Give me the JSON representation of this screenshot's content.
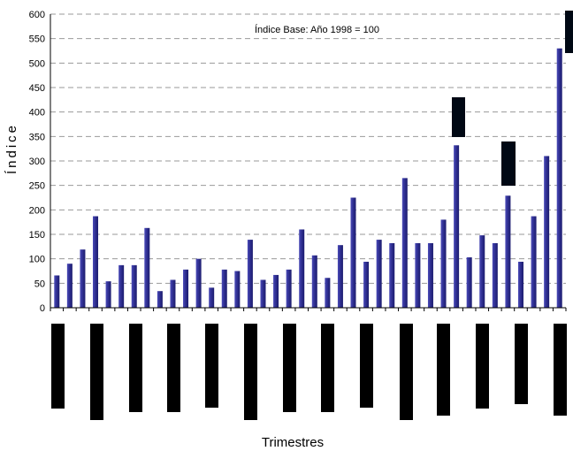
{
  "chart_data": {
    "type": "bar",
    "title": "",
    "annotation": "Índice Base: Año 1998 = 100",
    "xlabel": "Trimestres",
    "ylabel": "Índice",
    "ylim": [
      0,
      600
    ],
    "yticks": [
      0,
      50,
      100,
      150,
      200,
      250,
      300,
      350,
      400,
      450,
      500,
      550,
      600
    ],
    "grid": true,
    "legend": "none",
    "bar_color": "#2e2e8f",
    "series": [
      {
        "values": [
          66,
          90,
          119,
          187,
          54,
          87,
          87,
          163,
          34,
          57,
          78,
          100,
          41,
          78,
          75,
          139,
          57,
          67,
          78,
          160,
          107,
          61,
          128,
          225,
          94,
          139,
          132,
          265,
          132,
          132,
          180,
          332,
          103,
          148,
          132,
          229,
          94,
          187,
          310,
          530
        ]
      }
    ]
  }
}
